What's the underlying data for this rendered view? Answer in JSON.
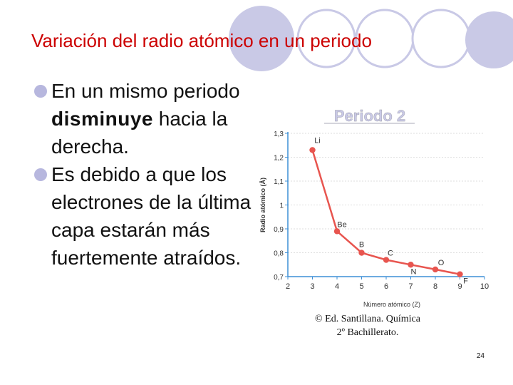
{
  "slide": {
    "title": "Variación del radio atómico en un periodo",
    "bullets": [
      {
        "parts": [
          "En un mismo periodo ",
          "disminuye",
          " hacia la derecha."
        ]
      },
      {
        "parts": [
          "Es debido a que los electrones de la última capa estarán más fuertemente atraídos."
        ]
      }
    ],
    "credit_line1": "© Ed. Santillana. Química",
    "credit_line2": "2º Bachillerato.",
    "page_number": "24"
  },
  "colors": {
    "title": "#cc0000",
    "bullet": "#b7b7de",
    "decor": "#c9c9e6",
    "line": "#e8554f",
    "axis": "#3d8fd6"
  },
  "chart_data": {
    "type": "line",
    "title": "Periodo 2",
    "xlabel": "Número atómico (Z)",
    "ylabel": "Radio atómico (Å)",
    "xlim": [
      2,
      10
    ],
    "ylim": [
      0.7,
      1.3
    ],
    "x_ticks": [
      "2",
      "3",
      "4",
      "5",
      "6",
      "7",
      "8",
      "9",
      "10"
    ],
    "y_ticks": [
      "1,3",
      "1,2",
      "1,1",
      "1",
      "0,9",
      "0,8",
      "0,7"
    ],
    "grid": "horizontal dashed",
    "points": [
      {
        "label": "Li",
        "x": 3,
        "y": 1.23
      },
      {
        "label": "Be",
        "x": 4,
        "y": 0.89
      },
      {
        "label": "B",
        "x": 5,
        "y": 0.8
      },
      {
        "label": "C",
        "x": 6,
        "y": 0.77
      },
      {
        "label": "N",
        "x": 7,
        "y": 0.75
      },
      {
        "label": "O",
        "x": 8,
        "y": 0.73
      },
      {
        "label": "F",
        "x": 9,
        "y": 0.71
      }
    ]
  }
}
